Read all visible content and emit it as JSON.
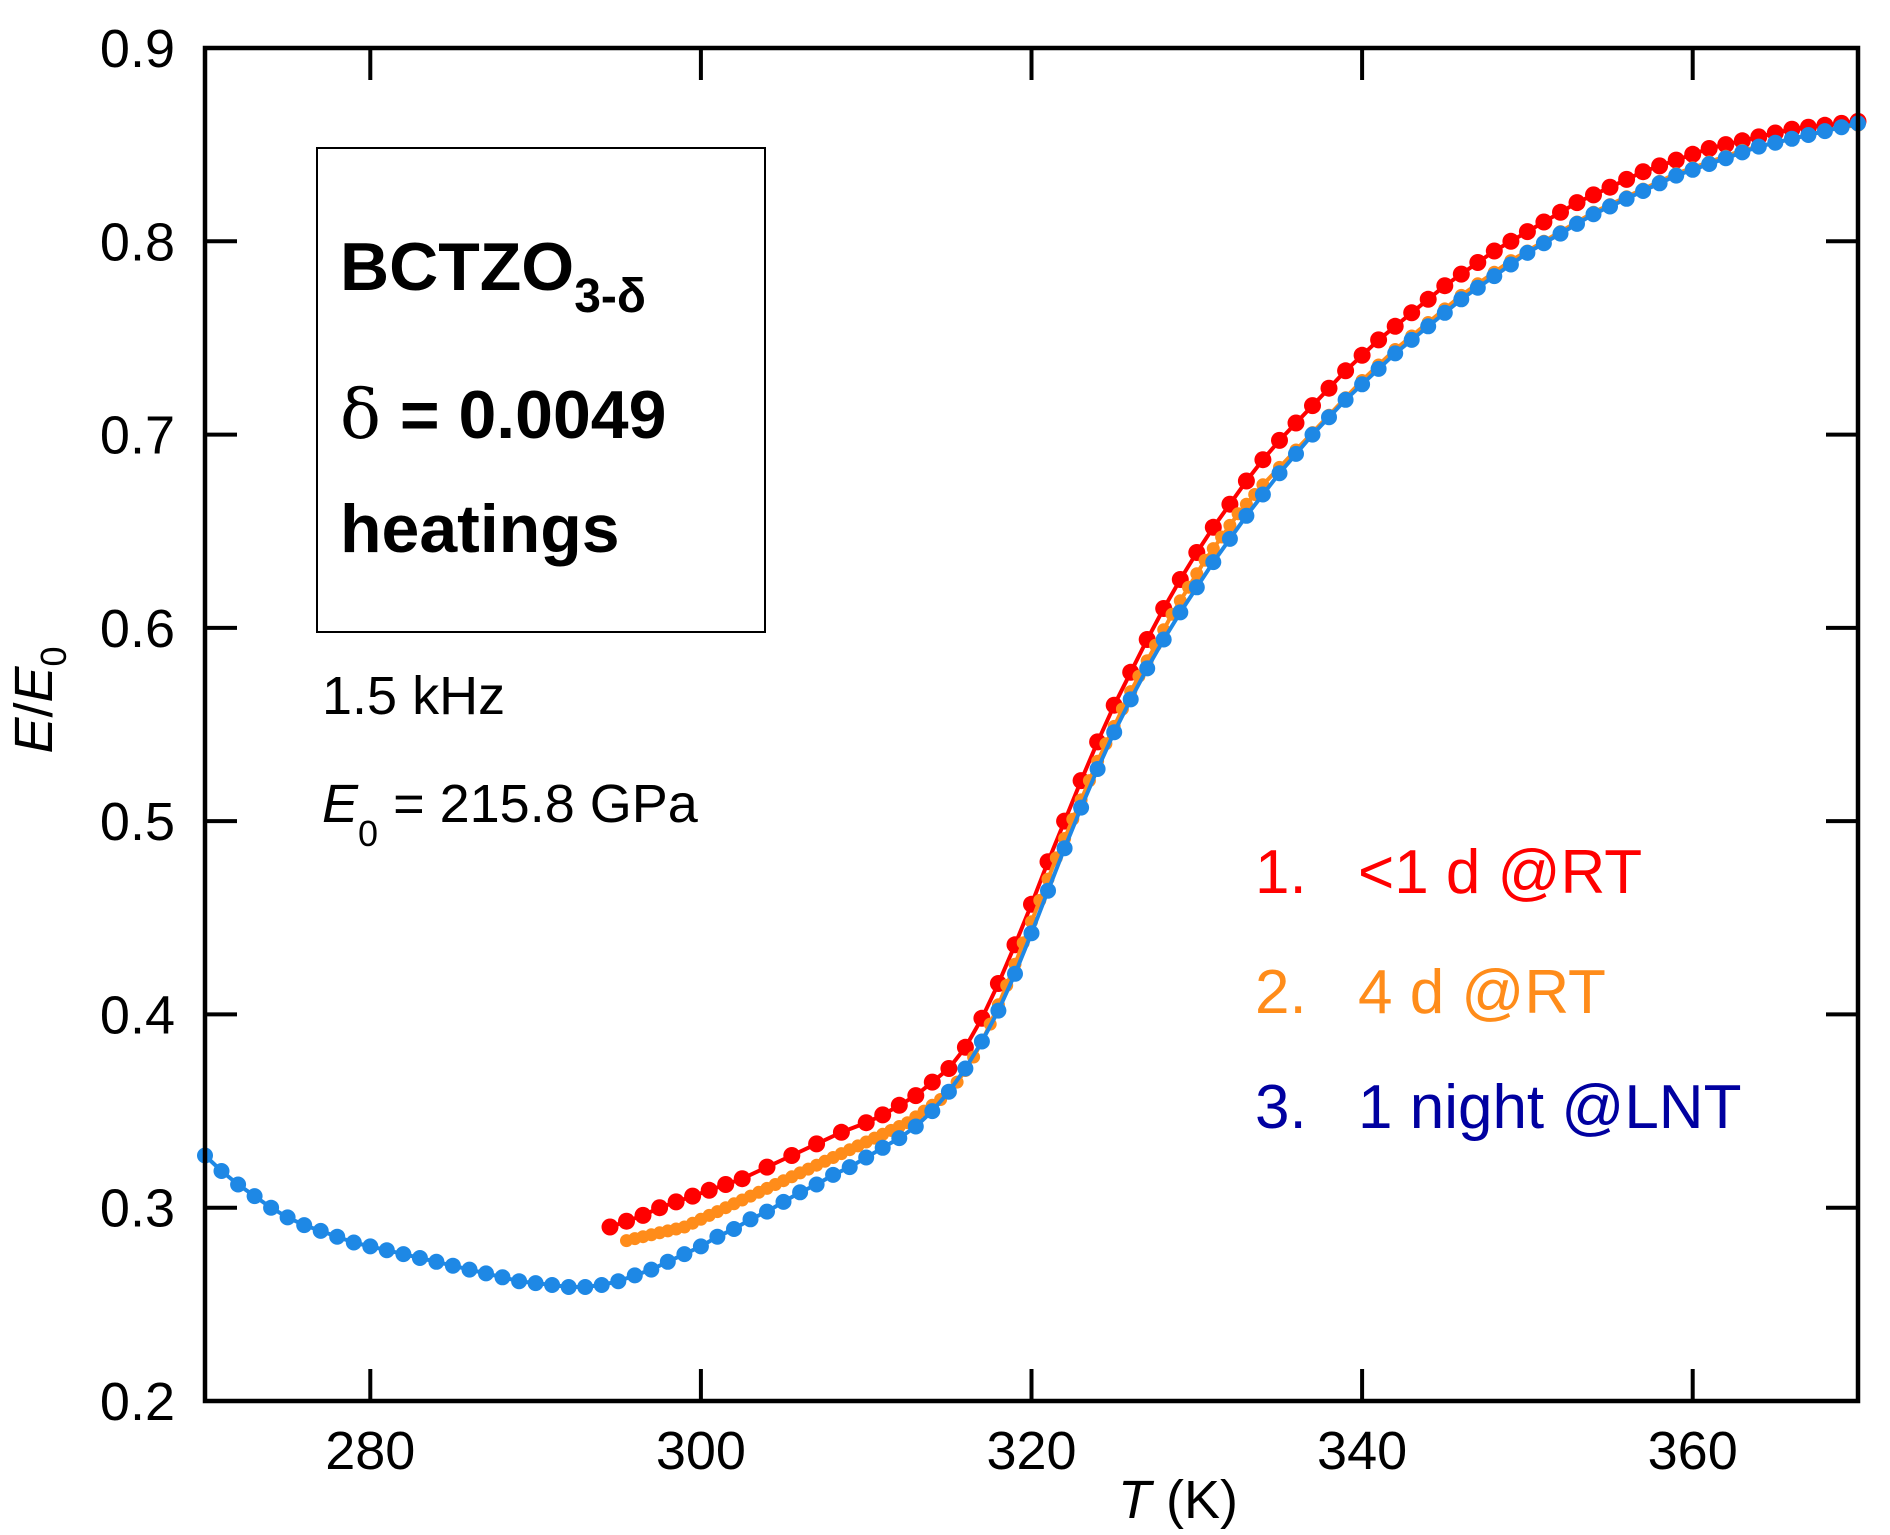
{
  "chart_data": {
    "type": "line",
    "title": "",
    "xlabel": {
      "italic": "T",
      "rest": " (K)"
    },
    "ylabel": {
      "italic1": "E",
      "slash": "/",
      "italic2": "E",
      "sub": "0"
    },
    "xlim": [
      270,
      370
    ],
    "ylim": [
      0.2,
      0.9
    ],
    "xticks": [
      280,
      300,
      320,
      340,
      360
    ],
    "xtick_labels": [
      "280",
      "300",
      "320",
      "340",
      "360"
    ],
    "yticks": [
      0.2,
      0.3,
      0.4,
      0.5,
      0.6,
      0.7,
      0.8,
      0.9
    ],
    "ytick_labels": [
      "0.2",
      "0.3",
      "0.4",
      "0.5",
      "0.6",
      "0.7",
      "0.8",
      "0.9"
    ],
    "grid": false,
    "series": [
      {
        "name": "<1 d @RT",
        "color": "#ff0000",
        "marker_size": 8.5,
        "x": [
          294.5,
          295.5,
          296.5,
          297.5,
          298.5,
          299.5,
          300.5,
          301.5,
          302.5,
          304,
          305.5,
          307,
          308.5,
          310,
          311,
          312,
          313,
          314,
          315,
          316,
          317,
          318,
          319,
          320,
          321,
          322,
          323,
          324,
          325,
          326,
          327,
          328,
          329,
          330,
          331,
          332,
          333,
          334,
          335,
          336,
          337,
          338,
          339,
          340,
          341,
          342,
          343,
          344,
          345,
          346,
          347,
          348,
          349,
          350,
          351,
          352,
          353,
          354,
          355,
          356,
          357,
          358,
          359,
          360,
          361,
          362,
          363,
          364,
          365,
          366,
          367,
          368,
          369,
          370
        ],
        "y": [
          0.29,
          0.293,
          0.296,
          0.3,
          0.303,
          0.306,
          0.309,
          0.312,
          0.315,
          0.321,
          0.327,
          0.333,
          0.339,
          0.344,
          0.348,
          0.353,
          0.358,
          0.365,
          0.372,
          0.383,
          0.398,
          0.416,
          0.436,
          0.457,
          0.479,
          0.5,
          0.521,
          0.541,
          0.56,
          0.577,
          0.594,
          0.61,
          0.625,
          0.639,
          0.652,
          0.664,
          0.676,
          0.687,
          0.697,
          0.706,
          0.715,
          0.724,
          0.733,
          0.741,
          0.749,
          0.756,
          0.763,
          0.77,
          0.777,
          0.783,
          0.789,
          0.795,
          0.8,
          0.805,
          0.81,
          0.815,
          0.82,
          0.824,
          0.828,
          0.832,
          0.836,
          0.839,
          0.842,
          0.845,
          0.848,
          0.85,
          0.852,
          0.854,
          0.856,
          0.858,
          0.859,
          0.86,
          0.861,
          0.862
        ]
      },
      {
        "name": "4 d @RT",
        "color": "#ff8c1a",
        "marker_size": 6.5,
        "x": [
          295.5,
          296,
          296.5,
          297,
          297.5,
          298,
          298.5,
          299,
          299.5,
          300,
          300.5,
          301,
          301.5,
          302,
          302.5,
          303,
          303.5,
          304,
          304.5,
          305,
          305.5,
          306,
          306.5,
          307,
          307.5,
          308,
          308.5,
          309,
          309.5,
          310,
          310.5,
          311,
          311.5,
          312,
          312.5,
          313,
          313.5,
          314,
          314.5,
          315,
          315.5,
          316,
          316.5,
          317,
          317.5,
          318,
          318.5,
          319,
          319.5,
          320,
          320.5,
          321,
          321.5,
          322,
          322.5,
          323,
          323.5,
          324,
          324.5,
          325,
          325.5,
          326,
          326.5,
          327,
          327.5,
          328,
          328.5,
          329,
          329.5,
          330,
          330.5,
          331,
          331.5,
          332,
          332.5,
          333,
          333.5,
          334,
          335,
          336,
          337,
          338,
          339,
          340,
          341,
          342,
          343,
          344,
          345,
          346,
          347,
          348,
          349,
          350,
          351,
          352,
          353,
          354,
          355,
          356,
          357,
          358,
          359,
          360,
          361,
          362,
          363,
          364,
          365,
          366,
          367,
          368,
          369,
          370
        ],
        "y": [
          0.283,
          0.284,
          0.285,
          0.286,
          0.287,
          0.288,
          0.289,
          0.29,
          0.292,
          0.294,
          0.296,
          0.298,
          0.3,
          0.302,
          0.304,
          0.306,
          0.308,
          0.31,
          0.312,
          0.314,
          0.316,
          0.318,
          0.32,
          0.322,
          0.324,
          0.326,
          0.328,
          0.33,
          0.332,
          0.334,
          0.336,
          0.338,
          0.34,
          0.342,
          0.344,
          0.347,
          0.35,
          0.353,
          0.356,
          0.36,
          0.365,
          0.371,
          0.378,
          0.386,
          0.395,
          0.405,
          0.415,
          0.426,
          0.437,
          0.448,
          0.459,
          0.47,
          0.481,
          0.491,
          0.501,
          0.511,
          0.521,
          0.531,
          0.54,
          0.549,
          0.558,
          0.567,
          0.575,
          0.583,
          0.591,
          0.599,
          0.607,
          0.614,
          0.621,
          0.628,
          0.635,
          0.641,
          0.647,
          0.653,
          0.659,
          0.664,
          0.669,
          0.674,
          0.683,
          0.692,
          0.701,
          0.71,
          0.719,
          0.728,
          0.736,
          0.744,
          0.751,
          0.758,
          0.765,
          0.772,
          0.778,
          0.784,
          0.79,
          0.795,
          0.8,
          0.805,
          0.81,
          0.815,
          0.819,
          0.823,
          0.827,
          0.831,
          0.835,
          0.838,
          0.841,
          0.844,
          0.847,
          0.849,
          0.851,
          0.853,
          0.855,
          0.857,
          0.859,
          0.86
        ]
      },
      {
        "name": "1 night @LNT",
        "color": "#1e88e5",
        "marker_size": 8,
        "x": [
          270,
          271,
          272,
          273,
          274,
          275,
          276,
          277,
          278,
          279,
          280,
          281,
          282,
          283,
          284,
          285,
          286,
          287,
          288,
          289,
          290,
          291,
          292,
          293,
          294,
          295,
          296,
          297,
          298,
          299,
          300,
          301,
          302,
          303,
          304,
          305,
          306,
          307,
          308,
          309,
          310,
          311,
          312,
          313,
          314,
          315,
          316,
          317,
          318,
          319,
          320,
          321,
          322,
          323,
          324,
          325,
          326,
          327,
          328,
          329,
          330,
          331,
          332,
          333,
          334,
          335,
          336,
          337,
          338,
          339,
          340,
          341,
          342,
          343,
          344,
          345,
          346,
          347,
          348,
          349,
          350,
          351,
          352,
          353,
          354,
          355,
          356,
          357,
          358,
          359,
          360,
          361,
          362,
          363,
          364,
          365,
          366,
          367,
          368,
          369,
          370
        ],
        "y": [
          0.327,
          0.319,
          0.312,
          0.306,
          0.3,
          0.295,
          0.291,
          0.288,
          0.285,
          0.282,
          0.28,
          0.278,
          0.276,
          0.274,
          0.272,
          0.27,
          0.268,
          0.266,
          0.264,
          0.262,
          0.261,
          0.26,
          0.259,
          0.259,
          0.26,
          0.262,
          0.265,
          0.268,
          0.272,
          0.276,
          0.28,
          0.285,
          0.289,
          0.294,
          0.298,
          0.303,
          0.308,
          0.312,
          0.317,
          0.321,
          0.326,
          0.331,
          0.336,
          0.342,
          0.35,
          0.36,
          0.372,
          0.386,
          0.402,
          0.421,
          0.442,
          0.464,
          0.486,
          0.507,
          0.527,
          0.546,
          0.563,
          0.579,
          0.594,
          0.608,
          0.621,
          0.634,
          0.646,
          0.658,
          0.669,
          0.68,
          0.69,
          0.7,
          0.709,
          0.718,
          0.726,
          0.734,
          0.742,
          0.749,
          0.756,
          0.763,
          0.77,
          0.776,
          0.782,
          0.788,
          0.794,
          0.799,
          0.804,
          0.809,
          0.814,
          0.818,
          0.822,
          0.826,
          0.83,
          0.834,
          0.837,
          0.84,
          0.843,
          0.846,
          0.849,
          0.851,
          0.853,
          0.855,
          0.857,
          0.859,
          0.861
        ]
      }
    ],
    "legend": {
      "position": "right",
      "entries": [
        {
          "number": "1.",
          "label": "<1 d @RT",
          "color": "#ff0000"
        },
        {
          "number": "2.",
          "label": "4 d @RT",
          "color": "#ff8c1a"
        },
        {
          "number": "3.",
          "label": "1 night @LNT",
          "color": "#0000a0"
        }
      ]
    },
    "annotations": {
      "box": {
        "line1_main": "BCTZO",
        "line1_sub": "3-δ",
        "line2_symbol": "δ",
        "line2_rest": " = 0.0049",
        "line3": "heatings"
      },
      "frequency": "1.5 kHz",
      "modulus": {
        "italic": "E",
        "sub": "0",
        "rest": " = 215.8 GPa"
      }
    }
  }
}
